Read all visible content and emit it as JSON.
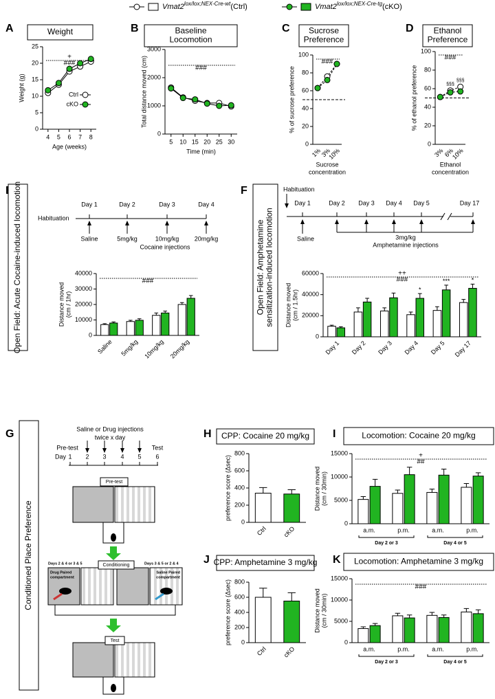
{
  "legend": {
    "entries": [
      {
        "name": [
          "Vmat2",
          "lox/lox;NEX-Cre-wt",
          "(Ctrl)"
        ],
        "color": "#ffffff"
      },
      {
        "name": [
          "Vmat2",
          "lox/lox;NEX-Cre-tg",
          "(cKO)"
        ],
        "color": "#21b421"
      }
    ]
  },
  "chart_data": [
    {
      "panel": "A",
      "type": "line",
      "title": "Weight",
      "x": [
        4,
        5,
        6,
        7,
        8
      ],
      "xlim": [
        3.5,
        8.5
      ],
      "xticks": [
        4,
        5,
        6,
        7,
        8
      ],
      "ylim": [
        0,
        25
      ],
      "yticks": [
        0,
        5,
        10,
        15,
        20,
        25
      ],
      "xlabel": "Age (weeks)",
      "ylabel": "Weight (g)",
      "overall_annotation": [
        "+",
        "###"
      ],
      "legend": "lower right",
      "series": [
        {
          "name": "Ctrl",
          "color": "#ffffff",
          "values": [
            11,
            13.5,
            17.5,
            19,
            20.5
          ]
        },
        {
          "name": "cKO",
          "color": "#21b421",
          "values": [
            11.8,
            14,
            18.3,
            20,
            21.3
          ]
        }
      ]
    },
    {
      "panel": "B",
      "type": "line",
      "title": [
        "Baseline",
        "Locomotion"
      ],
      "x": [
        5,
        10,
        15,
        20,
        25,
        30
      ],
      "xlim": [
        2.5,
        32.5
      ],
      "xticks": [
        5,
        10,
        15,
        20,
        25,
        30
      ],
      "ylim": [
        0,
        3000
      ],
      "yticks": [
        0,
        1000,
        2000,
        3000
      ],
      "xlabel": "Time (min)",
      "ylabel": "Total distance moved (cm)",
      "overall_annotation": [
        "###"
      ],
      "series": [
        {
          "color": "#ffffff",
          "values": [
            1650,
            1300,
            1180,
            1100,
            1100,
            980
          ]
        },
        {
          "color": "#21b421",
          "values": [
            1620,
            1280,
            1230,
            1080,
            1000,
            1020
          ]
        }
      ]
    },
    {
      "panel": "C",
      "type": "line",
      "title": [
        "Sucrose",
        "Preference"
      ],
      "categories": [
        "1%",
        "3%",
        "10%"
      ],
      "ylim": [
        0,
        100
      ],
      "yticks": [
        0,
        20,
        40,
        60,
        80,
        100
      ],
      "reference_line": 50,
      "xlabel": [
        "Sucrose",
        "concentration"
      ],
      "ylabel": "% of sucrose preference",
      "overall_annotation": [
        "###"
      ],
      "series": [
        {
          "color": "#ffffff",
          "values": [
            63,
            76,
            90
          ]
        },
        {
          "color": "#21b421",
          "values": [
            63,
            72,
            90
          ]
        }
      ]
    },
    {
      "panel": "D",
      "type": "line",
      "title": [
        "Ethanol",
        "Preference"
      ],
      "categories": [
        "3%",
        "6%",
        "10%"
      ],
      "ylim": [
        0,
        100
      ],
      "yticks": [
        0,
        20,
        40,
        60,
        80,
        100
      ],
      "reference_line": 50,
      "xlabel": [
        "Ethanol",
        "concentration"
      ],
      "ylabel": "% of ethanol preference",
      "overall_annotation": [
        "###"
      ],
      "category_annotations": [
        null,
        "§§§",
        "§§§"
      ],
      "series": [
        {
          "color": "#ffffff",
          "values": [
            51,
            58,
            62
          ]
        },
        {
          "color": "#21b421",
          "values": [
            51,
            56,
            57
          ]
        }
      ]
    },
    {
      "panel": "E",
      "type": "bar",
      "title": [
        "Open Field: Acute Cocaine-induced locomotion"
      ],
      "categories": [
        "Saline",
        "5mg/kg",
        "10mg/kg",
        "20mg/kg"
      ],
      "ylim": [
        0,
        40000
      ],
      "yticks": [
        0,
        10000,
        20000,
        30000,
        40000
      ],
      "ylabel": [
        "Distance moved",
        "(cm / 1hr)"
      ],
      "overall_annotation": [
        "###"
      ],
      "series": [
        {
          "color": "#ffffff",
          "values": [
            7000,
            9000,
            13000,
            20000
          ],
          "errors": [
            600,
            800,
            1500,
            1200
          ]
        },
        {
          "color": "#21b421",
          "values": [
            8000,
            9800,
            14500,
            24000
          ],
          "errors": [
            700,
            1000,
            1200,
            1800
          ]
        }
      ]
    },
    {
      "panel": "F",
      "type": "bar",
      "title": [
        "Open Field: Amphetamine",
        "sensitization-induced locomotion"
      ],
      "categories": [
        "Day 1",
        "Day 2",
        "Day 3",
        "Day 4",
        "Day 5",
        "Day 17"
      ],
      "ylim": [
        0,
        60000
      ],
      "yticks": [
        0,
        20000,
        40000,
        60000
      ],
      "ylabel": [
        "Distance moved",
        "(cm / 1.5hr)"
      ],
      "overall_annotation": [
        "++",
        "###"
      ],
      "series": [
        {
          "color": "#ffffff",
          "values": [
            10000,
            23500,
            24500,
            21000,
            25000,
            32500
          ],
          "errors": [
            1000,
            4000,
            3000,
            2500,
            3500,
            3000
          ]
        },
        {
          "color": "#21b421",
          "values": [
            8500,
            33000,
            37000,
            36500,
            44500,
            46000
          ],
          "errors": [
            1000,
            3500,
            4500,
            4500,
            4500,
            4000
          ],
          "significance": [
            null,
            null,
            null,
            "*",
            "***",
            "*"
          ]
        }
      ]
    },
    {
      "panel": "H",
      "type": "bar",
      "title": "CPP: Cocaine 20 mg/kg",
      "categories": [
        "Ctrl",
        "cKO"
      ],
      "ylim": [
        0,
        800
      ],
      "yticks": [
        0,
        200,
        400,
        600,
        800
      ],
      "ylabel": "preference score (Δsec)",
      "series": [
        {
          "colors": [
            "#ffffff",
            "#21b421"
          ],
          "values": [
            340,
            330
          ],
          "errors": [
            65,
            50
          ]
        }
      ]
    },
    {
      "panel": "I",
      "type": "bar",
      "title": "Locomotion: Cocaine 20 mg/kg",
      "categories": [
        "a.m.",
        "p.m.",
        "a.m.",
        "p.m."
      ],
      "group_labels": [
        "Day 2 or 3",
        "Day 4 or 5"
      ],
      "ylim": [
        0,
        15000
      ],
      "yticks": [
        0,
        5000,
        10000,
        15000
      ],
      "ylabel": [
        "Distance moved",
        "(cm / 30min)"
      ],
      "overall_annotation": [
        "+",
        "##"
      ],
      "series": [
        {
          "color": "#ffffff",
          "values": [
            5200,
            6500,
            6700,
            7800
          ],
          "errors": [
            600,
            700,
            700,
            800
          ]
        },
        {
          "color": "#21b421",
          "values": [
            8000,
            10500,
            10400,
            10200
          ],
          "errors": [
            1500,
            1600,
            1300,
            700
          ]
        }
      ]
    },
    {
      "panel": "J",
      "type": "bar",
      "title": "CPP: Amphetamine 3 mg/kg",
      "categories": [
        "Ctrl",
        "cKO"
      ],
      "ylim": [
        0,
        800
      ],
      "yticks": [
        0,
        200,
        400,
        600,
        800
      ],
      "ylabel": "preference score (Δsec)",
      "series": [
        {
          "colors": [
            "#ffffff",
            "#21b421"
          ],
          "values": [
            600,
            550
          ],
          "errors": [
            120,
            110
          ]
        }
      ]
    },
    {
      "panel": "K",
      "type": "bar",
      "title": "Locomotion: Amphetamine 3 mg/kg",
      "categories": [
        "a.m.",
        "p.m.",
        "a.m.",
        "p.m."
      ],
      "group_labels": [
        "Day 2 or 3",
        "Day 4 or 5"
      ],
      "ylim": [
        0,
        15000
      ],
      "yticks": [
        0,
        5000,
        10000,
        15000
      ],
      "ylabel": [
        "Distance moved",
        "(cm / 30min)"
      ],
      "overall_annotation": [
        "###"
      ],
      "series": [
        {
          "color": "#ffffff",
          "values": [
            3300,
            6300,
            6400,
            7200
          ],
          "errors": [
            400,
            600,
            700,
            800
          ]
        },
        {
          "color": "#21b421",
          "values": [
            4000,
            5800,
            5900,
            6800
          ],
          "errors": [
            500,
            700,
            600,
            900
          ]
        }
      ]
    }
  ],
  "diagrams": {
    "E": {
      "start": "Habituation",
      "days": [
        "Day 1",
        "Day 2",
        "Day 3",
        "Day 4"
      ],
      "doses": [
        "Saline",
        "5mg/kg",
        "10mg/kg",
        "20mg/kg"
      ],
      "caption": "Cocaine injections"
    },
    "F": {
      "start": "Habituation",
      "days": [
        "Day 1",
        "Day 2",
        "Day 3",
        "Day 4",
        "Day 5",
        "Day 17"
      ],
      "doses": [
        "Saline",
        "3mg/kg"
      ],
      "caption": "Amphetamine injections"
    },
    "G": {
      "panel": "G",
      "title": "Conditioned Place Preference",
      "header": [
        "Saline or Drug injections",
        "twice x day"
      ],
      "pretest": "Pre-test",
      "test": "Test",
      "day": "Day",
      "days": [
        "1",
        "2",
        "3",
        "4",
        "5",
        "6"
      ],
      "box_pretest": "Pre-test",
      "box_conditioning": "Conditioning",
      "left_days": "Days 2 & 4 or 3 & 5",
      "right_days": "Days 3 & 5 or 2 & 4",
      "drug": [
        "Drug Paired",
        "compartment"
      ],
      "saline": [
        "Saline Paired",
        "compartment"
      ],
      "box_test": "Test"
    }
  }
}
